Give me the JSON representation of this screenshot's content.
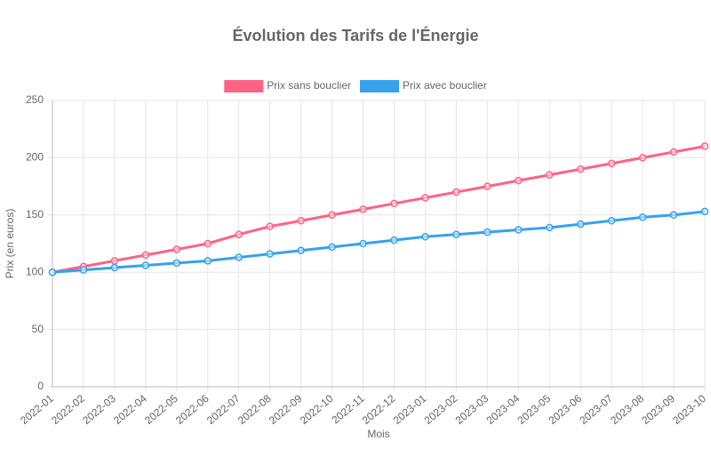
{
  "chart_data": {
    "type": "line",
    "title": "Évolution des Tarifs de l'Énergie",
    "x_label": "Mois",
    "y_label": "Prix (en euros)",
    "categories": [
      "2022-01",
      "2022-02",
      "2022-03",
      "2022-04",
      "2022-05",
      "2022-06",
      "2022-07",
      "2022-08",
      "2022-09",
      "2022-10",
      "2022-11",
      "2022-12",
      "2023-01",
      "2023-02",
      "2023-03",
      "2023-04",
      "2023-05",
      "2023-06",
      "2023-07",
      "2023-08",
      "2023-09",
      "2023-10"
    ],
    "series": [
      {
        "name": "Prix sans bouclier",
        "color": "#ff6384",
        "values": [
          100,
          105,
          110,
          115,
          120,
          125,
          133,
          140,
          145,
          150,
          155,
          160,
          165,
          170,
          175,
          180,
          185,
          190,
          195,
          200,
          205,
          210
        ]
      },
      {
        "name": "Prix avec bouclier",
        "color": "#36a2eb",
        "values": [
          100,
          102,
          104,
          106,
          108,
          110,
          113,
          116,
          119,
          122,
          125,
          128,
          131,
          133,
          135,
          137,
          139,
          142,
          145,
          148,
          150,
          153
        ]
      }
    ],
    "ylim": [
      0,
      250
    ],
    "yticks": [
      0,
      50,
      100,
      150,
      200,
      250
    ],
    "grid": true,
    "legend": "top"
  }
}
